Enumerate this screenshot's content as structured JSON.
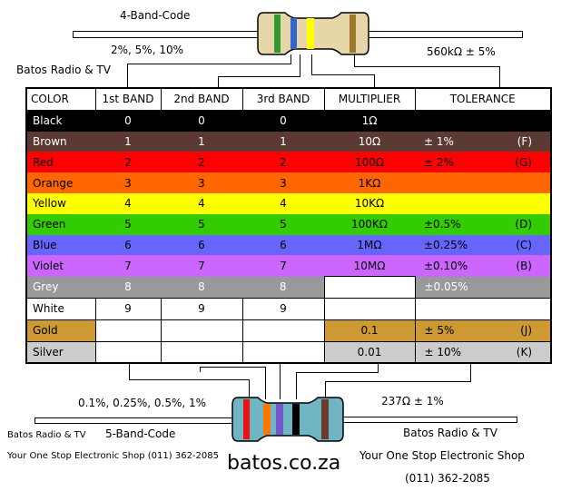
{
  "top": {
    "title": "4-Band-Code",
    "left_label": "2%, 5%, 10%",
    "right_label": "560kΩ ± 5%",
    "brand": "Batos Radio & TV"
  },
  "table": {
    "headers": [
      "COLOR",
      "1st BAND",
      "2nd BAND",
      "3rd BAND",
      "MULTIPLIER",
      "TOLERANCE"
    ],
    "rows": [
      {
        "name": "Black",
        "b1": "0",
        "b2": "0",
        "b3": "0",
        "mult": "1Ω",
        "tol": "",
        "code": "",
        "bg": "#000000",
        "fg": "#ffffff"
      },
      {
        "name": "Brown",
        "b1": "1",
        "b2": "1",
        "b3": "1",
        "mult": "10Ω",
        "tol": "±   1%",
        "code": "(F)",
        "bg": "#5c3a34",
        "fg": "#ffffff"
      },
      {
        "name": "Red",
        "b1": "2",
        "b2": "2",
        "b3": "2",
        "mult": "100Ω",
        "tol": "±   2%",
        "code": "(G)",
        "bg": "#ff0000",
        "fg": "#000000"
      },
      {
        "name": "Orange",
        "b1": "3",
        "b2": "3",
        "b3": "3",
        "mult": "1KΩ",
        "tol": "",
        "code": "",
        "bg": "#ff6600",
        "fg": "#000000"
      },
      {
        "name": "Yellow",
        "b1": "4",
        "b2": "4",
        "b3": "4",
        "mult": "10KΩ",
        "tol": "",
        "code": "",
        "bg": "#ffff00",
        "fg": "#000000"
      },
      {
        "name": "Green",
        "b1": "5",
        "b2": "5",
        "b3": "5",
        "mult": "100KΩ",
        "tol": "±0.5%",
        "code": "(D)",
        "bg": "#33cc00",
        "fg": "#000000"
      },
      {
        "name": "Blue",
        "b1": "6",
        "b2": "6",
        "b3": "6",
        "mult": "1MΩ",
        "tol": "±0.25%",
        "code": "(C)",
        "bg": "#6666ff",
        "fg": "#000000"
      },
      {
        "name": "Violet",
        "b1": "7",
        "b2": "7",
        "b3": "7",
        "mult": "10MΩ",
        "tol": "±0.10%",
        "code": "(B)",
        "bg": "#cc66ff",
        "fg": "#000000"
      },
      {
        "name": "Grey",
        "b1": "8",
        "b2": "8",
        "b3": "8",
        "mult": "",
        "tol": "±0.05%",
        "code": "",
        "bg": "#999999",
        "fg": "#ffffff"
      },
      {
        "name": "White",
        "b1": "9",
        "b2": "9",
        "b3": "9",
        "mult": "",
        "tol": "",
        "code": "",
        "bg": "#ffffff",
        "fg": "#000000"
      },
      {
        "name": "Gold",
        "b1": "",
        "b2": "",
        "b3": "",
        "mult": "0.1",
        "tol": "±   5%",
        "code": "(J)",
        "bg": "#cc9933",
        "fg": "#000000"
      },
      {
        "name": "Silver",
        "b1": "",
        "b2": "",
        "b3": "",
        "mult": "0.01",
        "tol": "±  10%",
        "code": "(K)",
        "bg": "#cccccc",
        "fg": "#000000"
      }
    ]
  },
  "bottom": {
    "left_label": "0.1%, 0.25%, 0.5%, 1%",
    "title": "5-Band-Code",
    "right_label": "237Ω ± 1%",
    "brand_left": "Batos Radio & TV",
    "brand_right": "Batos Radio & TV",
    "shop_left": "Your One Stop Electronic Shop  (011) 362-2085",
    "shop_right": "Your One Stop Electronic Shop",
    "phone_right": "(011) 362-2085",
    "website": "batos.co.za"
  },
  "colors": {
    "resistor_body": "#6fb5c4",
    "resistor_top_body": "#e6d6a8"
  }
}
